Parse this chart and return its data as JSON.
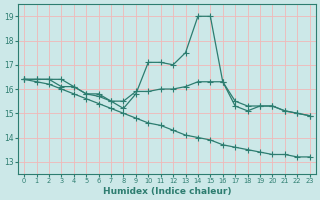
{
  "xlabel": "Humidex (Indice chaleur)",
  "bg_color": "#cce8e8",
  "grid_color": "#f0b8b8",
  "line_color": "#2d7d70",
  "xlim": [
    -0.5,
    23.5
  ],
  "ylim": [
    12.5,
    19.5
  ],
  "yticks": [
    13,
    14,
    15,
    16,
    17,
    18,
    19
  ],
  "xticks": [
    0,
    1,
    2,
    3,
    4,
    5,
    6,
    7,
    8,
    9,
    10,
    11,
    12,
    13,
    14,
    15,
    16,
    17,
    18,
    19,
    20,
    21,
    22,
    23
  ],
  "line1_x": [
    0,
    1,
    2,
    3,
    4,
    5,
    6,
    7,
    8,
    9,
    10,
    11,
    12,
    13,
    14,
    15,
    16,
    17,
    18,
    19,
    20,
    21,
    22,
    23
  ],
  "line1_y": [
    16.4,
    16.4,
    16.4,
    16.4,
    16.1,
    15.8,
    15.8,
    15.5,
    15.2,
    15.8,
    17.1,
    17.1,
    17.0,
    17.5,
    19.0,
    19.0,
    16.3,
    15.5,
    15.3,
    15.3,
    15.3,
    15.1,
    15.0,
    14.9
  ],
  "line2_x": [
    0,
    1,
    2,
    3,
    4,
    5,
    6,
    7,
    8,
    9,
    10,
    11,
    12,
    13,
    14,
    15,
    16,
    17,
    18,
    19,
    20,
    21,
    22,
    23
  ],
  "line2_y": [
    16.4,
    16.4,
    16.4,
    16.1,
    16.1,
    15.8,
    15.7,
    15.5,
    15.5,
    15.9,
    15.9,
    16.0,
    16.0,
    16.1,
    16.3,
    16.3,
    16.3,
    15.3,
    15.1,
    15.3,
    15.3,
    15.1,
    15.0,
    14.9
  ],
  "line3_x": [
    0,
    1,
    2,
    3,
    4,
    5,
    6,
    7,
    8,
    9,
    10,
    11,
    12,
    13,
    14,
    15,
    16,
    17,
    18,
    19,
    20,
    21,
    22,
    23
  ],
  "line3_y": [
    16.4,
    16.3,
    16.2,
    16.0,
    15.8,
    15.6,
    15.4,
    15.2,
    15.0,
    14.8,
    14.6,
    14.5,
    14.3,
    14.1,
    14.0,
    13.9,
    13.7,
    13.6,
    13.5,
    13.4,
    13.3,
    13.3,
    13.2,
    13.2
  ]
}
